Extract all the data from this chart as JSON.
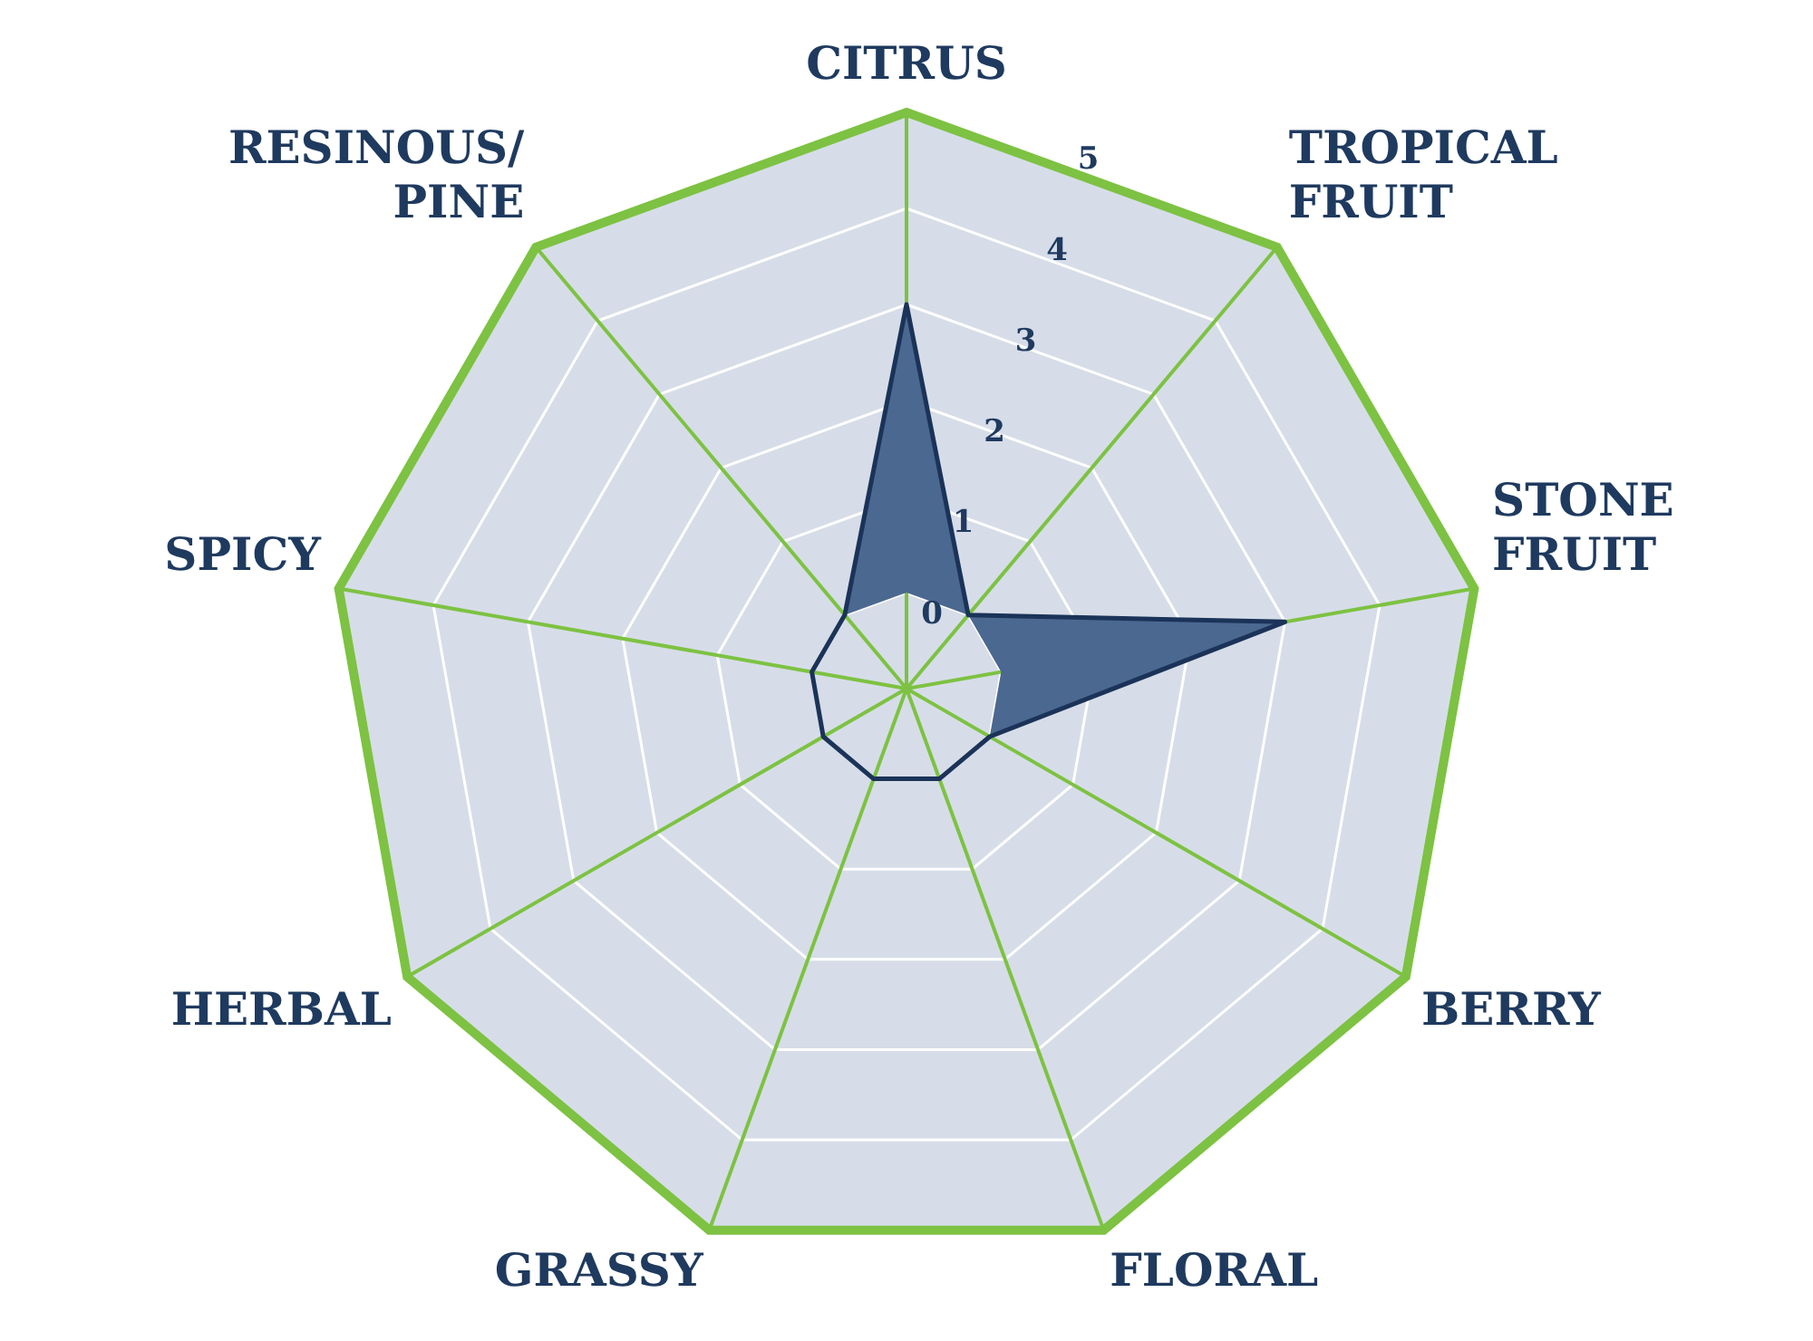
{
  "chart_data": {
    "type": "radar",
    "categories": [
      "CITRUS",
      "TROPICAL FRUIT",
      "STONE FRUIT",
      "BERRY",
      "FLORAL",
      "GRASSY",
      "HERBAL",
      "SPICY",
      "RESINOUS/PINE"
    ],
    "series": [
      {
        "color": "#4b6891",
        "values": [
          3,
          0,
          3,
          0,
          0,
          0,
          0,
          0,
          0
        ]
      }
    ],
    "ylim": [
      -1,
      5
    ],
    "yticks": [
      0,
      1,
      2,
      3,
      4,
      5
    ],
    "grid": true,
    "legend": false,
    "marker": "none"
  }
}
